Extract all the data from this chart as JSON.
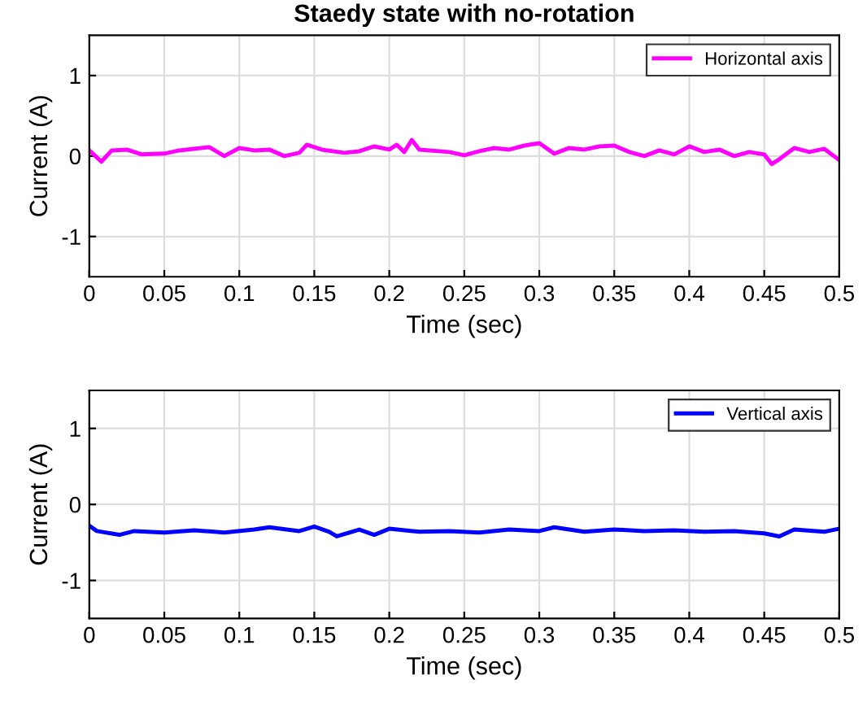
{
  "chart_data": [
    {
      "type": "line",
      "title": "Staedy state with no-rotation",
      "xlabel": "Time (sec)",
      "ylabel": "Current (A)",
      "xlim": [
        0,
        0.5
      ],
      "xticks": [
        0,
        0.05,
        0.1,
        0.15,
        0.2,
        0.25,
        0.3,
        0.35,
        0.4,
        0.45,
        0.5
      ],
      "ylim": [
        -1.5,
        1.5
      ],
      "yticks": [
        -1,
        0,
        1
      ],
      "grid": true,
      "legend": "top right",
      "series": [
        {
          "name": "Horizontal axis",
          "color": "#ff00ff",
          "x": [
            0,
            0.008,
            0.015,
            0.025,
            0.035,
            0.05,
            0.06,
            0.08,
            0.09,
            0.1,
            0.11,
            0.12,
            0.13,
            0.14,
            0.145,
            0.155,
            0.17,
            0.18,
            0.19,
            0.2,
            0.205,
            0.21,
            0.215,
            0.22,
            0.24,
            0.25,
            0.26,
            0.27,
            0.28,
            0.29,
            0.3,
            0.31,
            0.32,
            0.33,
            0.34,
            0.35,
            0.36,
            0.37,
            0.38,
            0.39,
            0.4,
            0.41,
            0.42,
            0.43,
            0.44,
            0.45,
            0.455,
            0.46,
            0.47,
            0.48,
            0.49,
            0.5
          ],
          "values": [
            0.07,
            -0.07,
            0.07,
            0.08,
            0.02,
            0.03,
            0.07,
            0.11,
            0.0,
            0.1,
            0.07,
            0.08,
            0.0,
            0.04,
            0.14,
            0.08,
            0.04,
            0.06,
            0.12,
            0.08,
            0.14,
            0.05,
            0.2,
            0.08,
            0.05,
            0.01,
            0.06,
            0.1,
            0.08,
            0.13,
            0.16,
            0.03,
            0.1,
            0.08,
            0.12,
            0.13,
            0.05,
            0.0,
            0.07,
            0.02,
            0.12,
            0.05,
            0.08,
            0.0,
            0.05,
            0.02,
            -0.1,
            -0.04,
            0.1,
            0.05,
            0.09,
            -0.05
          ]
        }
      ]
    },
    {
      "type": "line",
      "xlabel": "Time (sec)",
      "ylabel": "Current (A)",
      "xlim": [
        0,
        0.5
      ],
      "xticks": [
        0,
        0.05,
        0.1,
        0.15,
        0.2,
        0.25,
        0.3,
        0.35,
        0.4,
        0.45,
        0.5
      ],
      "ylim": [
        -1.5,
        1.5
      ],
      "yticks": [
        -1,
        0,
        1
      ],
      "grid": true,
      "legend": "top right",
      "series": [
        {
          "name": "Vertical axis",
          "color": "#0000ff",
          "x": [
            0,
            0.005,
            0.02,
            0.03,
            0.05,
            0.07,
            0.09,
            0.11,
            0.12,
            0.14,
            0.15,
            0.16,
            0.165,
            0.18,
            0.19,
            0.2,
            0.22,
            0.24,
            0.26,
            0.28,
            0.3,
            0.31,
            0.33,
            0.35,
            0.37,
            0.39,
            0.41,
            0.43,
            0.45,
            0.46,
            0.47,
            0.49,
            0.5
          ],
          "values": [
            -0.28,
            -0.35,
            -0.4,
            -0.35,
            -0.37,
            -0.34,
            -0.37,
            -0.33,
            -0.3,
            -0.35,
            -0.29,
            -0.36,
            -0.42,
            -0.33,
            -0.4,
            -0.32,
            -0.36,
            -0.35,
            -0.37,
            -0.33,
            -0.35,
            -0.3,
            -0.36,
            -0.33,
            -0.35,
            -0.34,
            -0.36,
            -0.35,
            -0.38,
            -0.42,
            -0.33,
            -0.36,
            -0.32
          ]
        }
      ]
    }
  ]
}
